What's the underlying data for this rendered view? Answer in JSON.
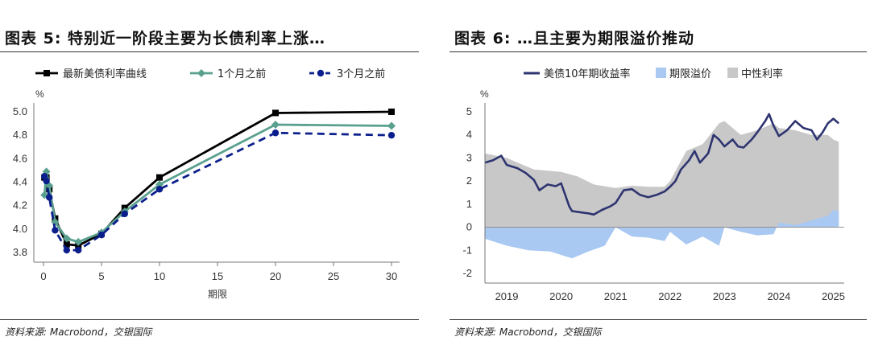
{
  "charts": [
    {
      "title": "图表 5: 特别近一阶段主要为长债利率上涨…",
      "source": "资料来源: Macrobond，交银国际"
    },
    {
      "title": "图表 6: …且主要为期限溢价推动",
      "source": "资料来源: Macrobond，交银国际"
    }
  ],
  "chart_data": [
    {
      "type": "line",
      "title": "图表 5: 特别近一阶段主要为长债利率上涨…",
      "xlabel": "期限",
      "ylabel": "%",
      "xlim": [
        0,
        30
      ],
      "ylim": [
        3.8,
        5.0
      ],
      "xticks": [
        0,
        5,
        10,
        15,
        20,
        25,
        30
      ],
      "yticks": [
        3.8,
        4.0,
        4.2,
        4.4,
        4.6,
        4.8,
        5.0
      ],
      "grid": false,
      "legend": "top",
      "series": [
        {
          "name": "最新美债利率曲线",
          "color": "#000000",
          "style": "solid",
          "marker": "square",
          "x": [
            0.083,
            0.25,
            0.5,
            1,
            2,
            3,
            5,
            7,
            10,
            20,
            30
          ],
          "y": [
            4.44,
            4.44,
            4.34,
            4.09,
            3.87,
            3.86,
            3.96,
            4.18,
            4.44,
            4.99,
            5.0
          ]
        },
        {
          "name": "1个月之前",
          "color": "#5aa08f",
          "style": "solid",
          "marker": "diamond",
          "x": [
            0.083,
            0.25,
            0.5,
            1,
            2,
            3,
            5,
            7,
            10,
            20,
            30
          ],
          "y": [
            4.29,
            4.49,
            4.37,
            4.06,
            3.92,
            3.89,
            3.97,
            4.15,
            4.38,
            4.89,
            4.88
          ]
        },
        {
          "name": "3个月之前",
          "color": "#0b1f8c",
          "style": "dashed",
          "marker": "circle",
          "x": [
            0.083,
            0.25,
            0.5,
            1,
            2,
            3,
            5,
            7,
            10,
            20,
            30
          ],
          "y": [
            4.45,
            4.41,
            4.27,
            3.99,
            3.82,
            3.82,
            3.95,
            4.13,
            4.34,
            4.82,
            4.8
          ]
        }
      ]
    },
    {
      "type": "area",
      "title": "图表 6: …且主要为期限溢价推动",
      "xlabel": "",
      "ylabel": "%",
      "xlim": [
        2018.6,
        2025.2
      ],
      "ylim": [
        -2,
        5
      ],
      "xticks": [
        2019,
        2020,
        2021,
        2022,
        2023,
        2024,
        2025
      ],
      "yticks": [
        -2,
        -1,
        0,
        1,
        2,
        3,
        4,
        5
      ],
      "grid": false,
      "legend": "top",
      "series": [
        {
          "name": "美债10年期收益率",
          "type": "line",
          "color": "#2e3470",
          "x": [
            2018.6,
            2018.75,
            2018.9,
            2019.0,
            2019.2,
            2019.35,
            2019.5,
            2019.6,
            2019.75,
            2019.9,
            2020.0,
            2020.15,
            2020.2,
            2020.35,
            2020.5,
            2020.6,
            2020.75,
            2020.9,
            2021.0,
            2021.15,
            2021.3,
            2021.45,
            2021.6,
            2021.75,
            2021.9,
            2022.0,
            2022.1,
            2022.2,
            2022.35,
            2022.45,
            2022.55,
            2022.7,
            2022.8,
            2022.9,
            2023.0,
            2023.15,
            2023.25,
            2023.35,
            2023.5,
            2023.6,
            2023.75,
            2023.82,
            2023.9,
            2024.0,
            2024.15,
            2024.3,
            2024.45,
            2024.6,
            2024.7,
            2024.8,
            2024.9,
            2025.0,
            2025.1
          ],
          "y": [
            2.8,
            2.9,
            3.1,
            2.7,
            2.55,
            2.35,
            2.05,
            1.6,
            1.85,
            1.78,
            1.9,
            0.9,
            0.7,
            0.65,
            0.6,
            0.55,
            0.75,
            0.9,
            1.05,
            1.6,
            1.65,
            1.4,
            1.3,
            1.4,
            1.55,
            1.75,
            2.0,
            2.5,
            2.9,
            3.3,
            2.8,
            3.2,
            4.0,
            3.8,
            3.5,
            3.8,
            3.5,
            3.45,
            3.8,
            4.1,
            4.6,
            4.9,
            4.4,
            3.95,
            4.2,
            4.6,
            4.3,
            4.2,
            3.8,
            4.1,
            4.5,
            4.7,
            4.5
          ]
        },
        {
          "name": "期限溢价",
          "type": "area",
          "color": "#a9c8f2",
          "x": [
            2018.6,
            2019.0,
            2019.4,
            2019.8,
            2020.0,
            2020.2,
            2020.5,
            2020.8,
            2021.0,
            2021.3,
            2021.6,
            2021.9,
            2022.0,
            2022.3,
            2022.6,
            2022.9,
            2023.0,
            2023.3,
            2023.6,
            2023.9,
            2024.0,
            2024.3,
            2024.6,
            2024.9,
            2025.0,
            2025.1
          ],
          "y": [
            -0.5,
            -0.8,
            -1.0,
            -1.05,
            -1.2,
            -1.35,
            -1.05,
            -0.8,
            0.0,
            -0.4,
            -0.45,
            -0.6,
            -0.2,
            -0.75,
            -0.4,
            -0.8,
            0.0,
            -0.2,
            -0.35,
            -0.3,
            0.2,
            0.1,
            0.3,
            0.5,
            0.75,
            0.7
          ]
        },
        {
          "name": "中性利率",
          "type": "area",
          "color": "#c8c8c8",
          "x": [
            2018.6,
            2019.0,
            2019.5,
            2020.0,
            2020.3,
            2020.6,
            2021.0,
            2021.3,
            2021.6,
            2021.9,
            2022.0,
            2022.3,
            2022.6,
            2022.9,
            2023.0,
            2023.3,
            2023.6,
            2023.9,
            2024.0,
            2024.3,
            2024.6,
            2024.9,
            2025.0,
            2025.1
          ],
          "y": [
            3.2,
            3.0,
            2.5,
            2.4,
            2.2,
            1.85,
            1.7,
            1.8,
            1.75,
            1.75,
            2.0,
            3.3,
            3.6,
            4.5,
            4.6,
            4.0,
            4.2,
            4.5,
            4.3,
            4.2,
            4.0,
            4.0,
            3.8,
            3.7
          ]
        }
      ]
    }
  ]
}
